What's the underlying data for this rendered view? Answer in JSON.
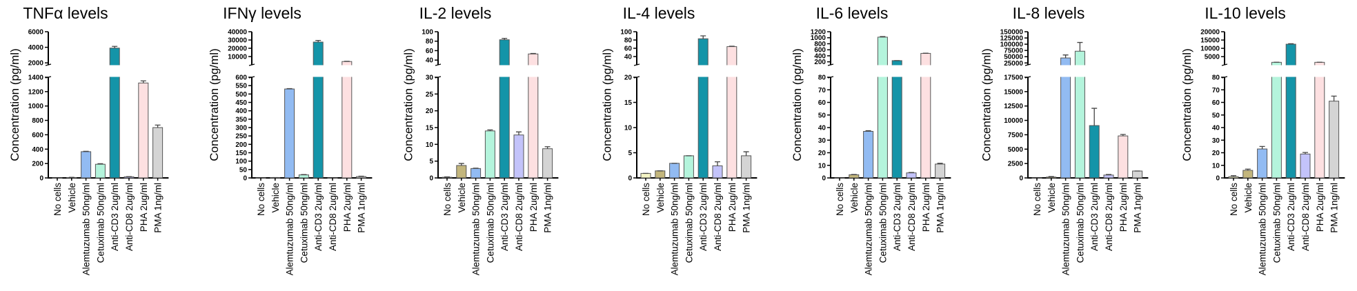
{
  "categories": [
    "No cells",
    "Vehicle",
    "Alemtuzumab 50ng/ml",
    "Cetuximab 50ng/ml",
    "Anti-CD3 2ug/ml",
    "Anti-CD8 2ug/ml",
    "PHA 2ug/ml",
    "PMA 1ng/ml"
  ],
  "colors": [
    "#f4f4c4",
    "#c3b67c",
    "#92bbf2",
    "#b4f4dc",
    "#1494a8",
    "#c3c3fa",
    "#fde0e1",
    "#d4d4d4"
  ],
  "chart_data": [
    {
      "type": "bar",
      "title": "TNFα levels",
      "ylabel": "Concentration (pg/ml)",
      "lower_range": [
        0,
        1400
      ],
      "lower_ticks": [
        0,
        200,
        400,
        600,
        800,
        1000,
        1200,
        1400
      ],
      "upper_range": [
        1750,
        6000
      ],
      "upper_ticks": [
        2000,
        4000,
        6000
      ],
      "values": [
        0,
        5,
        365,
        190,
        3900,
        15,
        1320,
        700
      ],
      "errors": [
        0,
        3,
        5,
        8,
        220,
        3,
        30,
        35
      ]
    },
    {
      "type": "bar",
      "title": "IFNγ levels",
      "ylabel": "Concentration (pg/ml)",
      "lower_range": [
        0,
        600
      ],
      "lower_ticks": [
        0,
        50,
        100,
        150,
        200,
        250,
        300,
        350,
        400,
        450,
        500,
        550,
        600
      ],
      "upper_range": [
        0,
        40000
      ],
      "upper_ticks": [
        10000,
        20000,
        30000,
        40000
      ],
      "values": [
        0,
        1,
        530,
        18,
        27500,
        0,
        4000,
        8
      ],
      "errors": [
        0,
        1,
        2,
        2,
        2000,
        0,
        200,
        2
      ]
    },
    {
      "type": "bar",
      "title": "IL-2 levels",
      "ylabel": "Concentration (pg/ml)",
      "lower_range": [
        0,
        30
      ],
      "lower_ticks": [
        0,
        5,
        10,
        15,
        20,
        25,
        30
      ],
      "upper_range": [
        30,
        100
      ],
      "upper_ticks": [
        40,
        60,
        80,
        100
      ],
      "values": [
        0.2,
        3.7,
        2.8,
        14,
        83,
        12.8,
        53,
        8.7
      ],
      "errors": [
        0.1,
        0.6,
        0.1,
        0.3,
        3,
        0.9,
        1,
        0.6
      ]
    },
    {
      "type": "bar",
      "title": "IL-4 levels",
      "ylabel": "Concentration (pg/ml)",
      "lower_range": [
        0,
        20
      ],
      "lower_ticks": [
        0,
        5,
        10,
        15,
        20
      ],
      "upper_range": [
        20,
        100
      ],
      "upper_ticks": [
        40,
        60,
        80,
        100
      ],
      "values": [
        0.9,
        1.4,
        2.9,
        4.4,
        83,
        2.4,
        64,
        4.4
      ],
      "errors": [
        0,
        0,
        0,
        0,
        7,
        0.8,
        1,
        0.8
      ]
    },
    {
      "type": "bar",
      "title": "IL-6 levels",
      "ylabel": "Concentration (pg/ml)",
      "lower_range": [
        0,
        80
      ],
      "lower_ticks": [
        0,
        10,
        20,
        30,
        40,
        50,
        60,
        70,
        80
      ],
      "upper_range": [
        100,
        1200
      ],
      "upper_ticks": [
        200,
        400,
        600,
        800,
        1000,
        1200
      ],
      "values": [
        0,
        2.5,
        37,
        1020,
        240,
        4,
        480,
        11
      ],
      "errors": [
        0,
        0.2,
        0.5,
        20,
        0,
        0.3,
        5,
        0.6
      ]
    },
    {
      "type": "bar",
      "title": "IL-8 levels",
      "ylabel": "Concentration (pg/ml)",
      "lower_range": [
        0,
        17500
      ],
      "lower_ticks": [
        0,
        2500,
        5000,
        7500,
        10000,
        12500,
        15000,
        17500
      ],
      "upper_range": [
        17500,
        150000
      ],
      "upper_ticks": [
        25000,
        50000,
        75000,
        100000,
        125000,
        150000
      ],
      "values": [
        0,
        150,
        45000,
        72000,
        9100,
        500,
        7300,
        1200
      ],
      "errors": [
        0,
        80,
        12000,
        35000,
        3000,
        100,
        250,
        0
      ]
    },
    {
      "type": "bar",
      "title": "IL-10 levels",
      "ylabel": "Concentration (pg/ml)",
      "lower_range": [
        0,
        80
      ],
      "lower_ticks": [
        0,
        10,
        20,
        30,
        40,
        50,
        60,
        70,
        80
      ],
      "upper_range": [
        80,
        20000
      ],
      "upper_ticks": [
        5000,
        10000,
        15000,
        20000
      ],
      "values": [
        1,
        6,
        23,
        1600,
        12500,
        19,
        1600,
        61
      ],
      "errors": [
        0.8,
        1,
        2,
        50,
        300,
        1.2,
        50,
        4
      ]
    }
  ]
}
